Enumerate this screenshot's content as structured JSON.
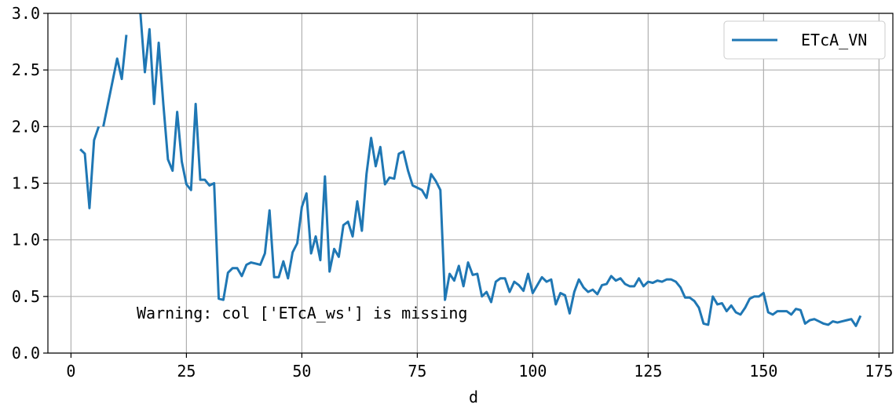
{
  "chart_data": {
    "type": "line",
    "xlabel": "d",
    "ylabel": "",
    "xlim": [
      -5,
      178
    ],
    "ylim": [
      0.0,
      3.0
    ],
    "x_ticks": [
      0,
      25,
      50,
      75,
      100,
      125,
      150,
      175
    ],
    "y_ticks": [
      0.0,
      0.5,
      1.0,
      1.5,
      2.0,
      2.5,
      3.0
    ],
    "x_tick_labels": [
      "0",
      "25",
      "50",
      "75",
      "100",
      "125",
      "150",
      "175"
    ],
    "y_tick_labels": [
      "0.0",
      "0.5",
      "1.0",
      "1.5",
      "2.0",
      "2.5",
      "3.0"
    ],
    "grid": true,
    "legend_position": "top-right",
    "annotation": "Warning: col ['ETcA_ws'] is missing",
    "series": [
      {
        "name": "ETcA_VN",
        "color": "#1f77b4",
        "segments": [
          [
            [
              2,
              1.8
            ],
            [
              3,
              1.76
            ],
            [
              4,
              1.28
            ],
            [
              5,
              1.88
            ],
            [
              6,
              2.0
            ]
          ],
          [
            [
              7,
              2.0
            ],
            [
              10,
              2.6
            ],
            [
              11,
              2.42
            ],
            [
              12,
              2.81
            ]
          ],
          [
            [
              15,
              3.02
            ],
            [
              16,
              2.48
            ],
            [
              17,
              2.86
            ],
            [
              18,
              2.2
            ],
            [
              19,
              2.74
            ],
            [
              20,
              2.2
            ],
            [
              21,
              1.71
            ],
            [
              22,
              1.61
            ],
            [
              23,
              2.13
            ],
            [
              24,
              1.69
            ],
            [
              25,
              1.49
            ],
            [
              26,
              1.44
            ],
            [
              27,
              2.2
            ],
            [
              28,
              1.53
            ],
            [
              29,
              1.53
            ],
            [
              30,
              1.48
            ],
            [
              31,
              1.5
            ],
            [
              32,
              0.48
            ],
            [
              33,
              0.47
            ],
            [
              34,
              0.71
            ],
            [
              35,
              0.75
            ],
            [
              36,
              0.75
            ],
            [
              37,
              0.68
            ],
            [
              38,
              0.78
            ],
            [
              39,
              0.8
            ],
            [
              40,
              0.79
            ],
            [
              41,
              0.78
            ],
            [
              42,
              0.88
            ],
            [
              43,
              1.26
            ],
            [
              44,
              0.67
            ],
            [
              45,
              0.67
            ],
            [
              46,
              0.81
            ],
            [
              47,
              0.66
            ],
            [
              48,
              0.89
            ],
            [
              49,
              0.97
            ],
            [
              50,
              1.29
            ],
            [
              51,
              1.41
            ],
            [
              52,
              0.88
            ],
            [
              53,
              1.03
            ],
            [
              54,
              0.82
            ],
            [
              55,
              1.56
            ],
            [
              56,
              0.72
            ],
            [
              57,
              0.92
            ],
            [
              58,
              0.85
            ],
            [
              59,
              1.13
            ],
            [
              60,
              1.16
            ],
            [
              61,
              1.03
            ],
            [
              62,
              1.34
            ],
            [
              63,
              1.08
            ],
            [
              64,
              1.58
            ],
            [
              65,
              1.9
            ],
            [
              66,
              1.65
            ],
            [
              67,
              1.82
            ],
            [
              68,
              1.49
            ],
            [
              69,
              1.55
            ],
            [
              70,
              1.54
            ],
            [
              71,
              1.76
            ],
            [
              72,
              1.78
            ],
            [
              73,
              1.61
            ],
            [
              74,
              1.48
            ],
            [
              75,
              1.46
            ],
            [
              76,
              1.44
            ],
            [
              77,
              1.37
            ],
            [
              78,
              1.58
            ],
            [
              79,
              1.52
            ],
            [
              80,
              1.44
            ],
            [
              81,
              0.47
            ],
            [
              82,
              0.7
            ],
            [
              83,
              0.64
            ],
            [
              84,
              0.77
            ],
            [
              85,
              0.59
            ],
            [
              86,
              0.8
            ],
            [
              87,
              0.69
            ],
            [
              88,
              0.7
            ],
            [
              89,
              0.5
            ],
            [
              90,
              0.54
            ],
            [
              91,
              0.45
            ],
            [
              92,
              0.63
            ],
            [
              93,
              0.66
            ],
            [
              94,
              0.66
            ],
            [
              95,
              0.54
            ],
            [
              96,
              0.63
            ],
            [
              97,
              0.6
            ],
            [
              98,
              0.55
            ],
            [
              99,
              0.7
            ],
            [
              100,
              0.53
            ],
            [
              101,
              0.6
            ],
            [
              102,
              0.67
            ],
            [
              103,
              0.63
            ],
            [
              104,
              0.65
            ],
            [
              105,
              0.43
            ],
            [
              106,
              0.53
            ],
            [
              107,
              0.51
            ],
            [
              108,
              0.35
            ],
            [
              109,
              0.54
            ],
            [
              110,
              0.65
            ],
            [
              111,
              0.58
            ],
            [
              112,
              0.54
            ],
            [
              113,
              0.56
            ],
            [
              114,
              0.52
            ],
            [
              115,
              0.6
            ],
            [
              116,
              0.61
            ],
            [
              117,
              0.68
            ],
            [
              118,
              0.64
            ],
            [
              119,
              0.66
            ],
            [
              120,
              0.61
            ],
            [
              121,
              0.59
            ],
            [
              122,
              0.59
            ],
            [
              123,
              0.66
            ],
            [
              124,
              0.59
            ],
            [
              125,
              0.63
            ],
            [
              126,
              0.62
            ],
            [
              127,
              0.64
            ],
            [
              128,
              0.63
            ],
            [
              129,
              0.65
            ],
            [
              130,
              0.65
            ],
            [
              131,
              0.63
            ],
            [
              132,
              0.58
            ],
            [
              133,
              0.49
            ],
            [
              134,
              0.49
            ],
            [
              135,
              0.46
            ],
            [
              136,
              0.4
            ],
            [
              137,
              0.26
            ],
            [
              138,
              0.25
            ],
            [
              139,
              0.5
            ],
            [
              140,
              0.43
            ],
            [
              141,
              0.44
            ],
            [
              142,
              0.37
            ],
            [
              143,
              0.42
            ],
            [
              144,
              0.36
            ],
            [
              145,
              0.34
            ],
            [
              146,
              0.4
            ],
            [
              147,
              0.48
            ],
            [
              148,
              0.5
            ],
            [
              149,
              0.5
            ],
            [
              150,
              0.53
            ],
            [
              151,
              0.36
            ],
            [
              152,
              0.34
            ],
            [
              153,
              0.37
            ],
            [
              154,
              0.37
            ],
            [
              155,
              0.37
            ],
            [
              156,
              0.34
            ],
            [
              157,
              0.39
            ],
            [
              158,
              0.38
            ],
            [
              159,
              0.26
            ],
            [
              160,
              0.29
            ],
            [
              161,
              0.3
            ],
            [
              162,
              0.28
            ],
            [
              163,
              0.26
            ],
            [
              164,
              0.25
            ],
            [
              165,
              0.28
            ],
            [
              166,
              0.27
            ],
            [
              167,
              0.28
            ],
            [
              168,
              0.29
            ],
            [
              169,
              0.3
            ],
            [
              170,
              0.24
            ],
            [
              171,
              0.33
            ]
          ]
        ]
      }
    ]
  }
}
